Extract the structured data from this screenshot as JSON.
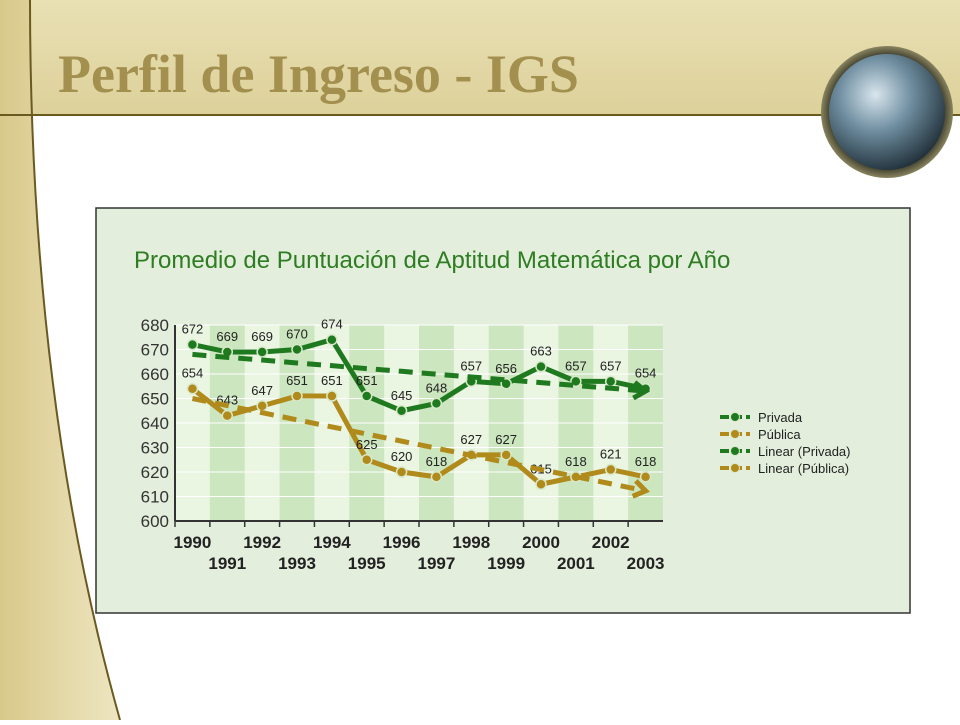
{
  "slide": {
    "title": "Perfil de Ingreso - IGS"
  },
  "chart_data": {
    "type": "line",
    "title": "Promedio de Puntuación de Aptitud Matemática por Año",
    "categories": [
      "1990",
      "1991",
      "1992",
      "1993",
      "1994",
      "1995",
      "1996",
      "1997",
      "1998",
      "1999",
      "2000",
      "2001",
      "2002",
      "2003"
    ],
    "series": [
      {
        "name": "Privada",
        "color": "#1f7a1f",
        "style": "solid",
        "data_labels": true,
        "values": [
          672,
          669,
          669,
          670,
          674,
          651,
          645,
          648,
          657,
          656,
          663,
          657,
          657,
          654
        ]
      },
      {
        "name": "Pública",
        "color": "#b08a1a",
        "style": "solid",
        "data_labels": true,
        "values": [
          654,
          643,
          647,
          651,
          651,
          625,
          620,
          618,
          627,
          627,
          615,
          618,
          621,
          618
        ]
      },
      {
        "name": "Linear (Privada)",
        "color": "#1f7a1f",
        "style": "dashed",
        "data_labels": false,
        "values": [
          668,
          666.8,
          665.7,
          664.5,
          663.4,
          662.2,
          661.1,
          659.9,
          658.8,
          657.6,
          656.5,
          655.3,
          654.2,
          653
        ]
      },
      {
        "name": "Linear (Pública)",
        "color": "#b08a1a",
        "style": "dashed",
        "data_labels": false,
        "values": [
          650,
          647.1,
          644.2,
          641.3,
          638.4,
          635.5,
          632.6,
          629.7,
          626.8,
          623.9,
          621,
          618.1,
          615.2,
          612.3
        ]
      }
    ],
    "ylim": [
      600,
      680
    ],
    "yticks": [
      600,
      610,
      620,
      630,
      640,
      650,
      660,
      670,
      680
    ],
    "grid": true,
    "legend": "right"
  }
}
